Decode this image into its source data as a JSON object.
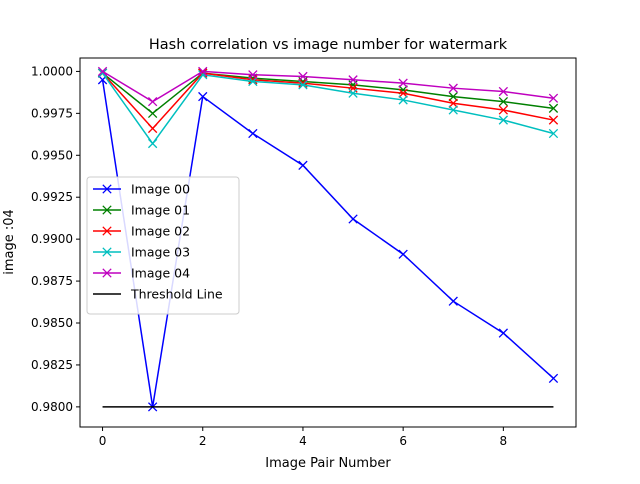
{
  "chart_data": {
    "type": "line",
    "title": "Hash correlation vs image number for watermark",
    "xlabel": "Image Pair Number",
    "ylabel": "image :04",
    "xlim": [
      -0.45,
      9.45
    ],
    "ylim": [
      0.9788,
      1.0008
    ],
    "xticks": [
      0,
      2,
      4,
      6,
      8
    ],
    "yticks": [
      0.98,
      0.9825,
      0.985,
      0.9875,
      0.99,
      0.9925,
      0.995,
      0.9975,
      1.0
    ],
    "ytick_labels": [
      "0.9800",
      "0.9825",
      "0.9850",
      "0.9875",
      "0.9900",
      "0.9925",
      "0.9950",
      "0.9975",
      "1.0000"
    ],
    "x": [
      0,
      1,
      2,
      3,
      4,
      5,
      6,
      7,
      8,
      9
    ],
    "grid": false,
    "legend_position": "center-left",
    "series": [
      {
        "name": "Image 00",
        "color": "#0000ff",
        "marker": "x",
        "values": [
          0.9995,
          0.98,
          0.9985,
          0.9963,
          0.9944,
          0.9912,
          0.9891,
          0.9863,
          0.9844,
          0.9817
        ]
      },
      {
        "name": "Image 01",
        "color": "#008000",
        "marker": "x",
        "values": [
          0.9999,
          0.9975,
          0.9999,
          0.9996,
          0.9994,
          0.9992,
          0.9989,
          0.9985,
          0.9982,
          0.9978
        ]
      },
      {
        "name": "Image 02",
        "color": "#ff0000",
        "marker": "x",
        "values": [
          0.9999,
          0.9966,
          0.9999,
          0.9995,
          0.9993,
          0.999,
          0.9987,
          0.9981,
          0.9977,
          0.9971
        ]
      },
      {
        "name": "Image 03",
        "color": "#00bfbf",
        "marker": "x",
        "values": [
          0.9999,
          0.9957,
          0.9998,
          0.9994,
          0.9992,
          0.9987,
          0.9983,
          0.9977,
          0.9971,
          0.9963
        ]
      },
      {
        "name": "Image 04",
        "color": "#bf00bf",
        "marker": "x",
        "values": [
          1.0,
          0.9982,
          1.0,
          0.9998,
          0.9997,
          0.9995,
          0.9993,
          0.999,
          0.9988,
          0.9984
        ]
      },
      {
        "name": "Threshold Line",
        "color": "#000000",
        "marker": "none",
        "values": [
          0.98,
          0.98,
          0.98,
          0.98,
          0.98,
          0.98,
          0.98,
          0.98,
          0.98,
          0.98
        ]
      }
    ]
  }
}
